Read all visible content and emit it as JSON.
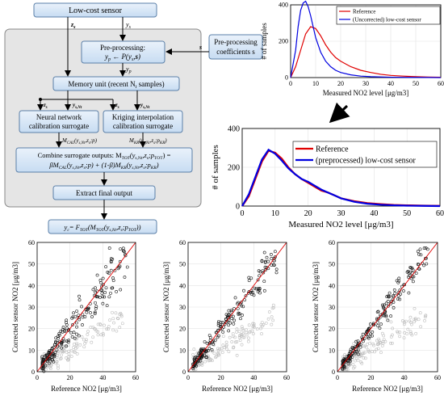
{
  "flowchart": {
    "sensor_box": "Low-cost sensor",
    "pre_box_line1": "Pre-processing:",
    "pre_box_line2": "y",
    "pre_coeff_line1": "Pre-processing",
    "pre_coeff_line2": "coefficients s",
    "memory_box": "Memory unit (recent N",
    "nn_line1": "Neural network",
    "nn_line2": "calibration surrogate",
    "kr_line1": "Kriging interpolation",
    "kr_line2": "calibration surrogate",
    "combine_line1": "Combine surrogate outputs: M",
    "combine_line2": "βM",
    "extract_box": "Extract final output",
    "final_box": "y",
    "lbl_zs": "z",
    "lbl_ys": "y",
    "lbl_s": "s",
    "lbl_yp": "y",
    "lbl_yNt": "y",
    "lbl_MCAL": "M",
    "lbl_MKR": "M"
  },
  "chart_data": [
    {
      "type": "line",
      "title": "",
      "xlabel": "Measured NO2 level [μg/m3]",
      "ylabel": "# of samples",
      "xlim": [
        0,
        60
      ],
      "ylim": [
        0,
        400
      ],
      "xticks": [
        "0",
        "10",
        "20",
        "30",
        "40",
        "50",
        "60"
      ],
      "yticks": [
        "0",
        "200",
        "400"
      ],
      "legend": "top-right",
      "series": [
        {
          "name": "Reference",
          "color": "#e00000",
          "x": [
            0,
            2,
            4,
            6,
            8,
            10,
            12,
            14,
            16,
            18,
            20,
            24,
            28,
            32,
            36,
            40,
            45,
            50,
            55,
            60
          ],
          "y": [
            0,
            60,
            150,
            240,
            280,
            270,
            230,
            180,
            140,
            110,
            90,
            60,
            40,
            28,
            18,
            12,
            8,
            5,
            3,
            2
          ]
        },
        {
          "name": "(Uncorrected) low-cost sensor",
          "color": "#0000e0",
          "x": [
            0,
            2,
            3,
            4,
            5,
            6,
            7,
            8,
            9,
            10,
            12,
            14,
            16,
            18,
            20,
            24,
            28,
            32,
            40,
            50,
            60
          ],
          "y": [
            0,
            150,
            280,
            370,
            410,
            420,
            390,
            340,
            280,
            220,
            140,
            90,
            60,
            40,
            28,
            15,
            8,
            5,
            2,
            1,
            0
          ]
        }
      ]
    },
    {
      "type": "line",
      "title": "",
      "xlabel": "Measured NO2 level [μg/m3]",
      "ylabel": "# of samples",
      "xlim": [
        0,
        60
      ],
      "ylim": [
        0,
        400
      ],
      "xticks": [
        "0",
        "10",
        "20",
        "30",
        "40",
        "50",
        "60"
      ],
      "yticks": [
        "0",
        "200",
        "400"
      ],
      "legend": "top-right",
      "series": [
        {
          "name": "Reference",
          "color": "#e00000",
          "x": [
            0,
            2,
            4,
            6,
            8,
            10,
            12,
            14,
            16,
            18,
            20,
            22,
            24,
            26,
            28,
            30,
            34,
            38,
            42,
            46,
            50,
            55,
            60
          ],
          "y": [
            0,
            50,
            140,
            230,
            285,
            275,
            245,
            200,
            165,
            140,
            120,
            100,
            80,
            70,
            55,
            40,
            25,
            15,
            10,
            6,
            4,
            2,
            1
          ]
        },
        {
          "name": "(preprocessed) low-cost sensor",
          "color": "#0000e0",
          "x": [
            0,
            2,
            4,
            6,
            8,
            10,
            12,
            14,
            16,
            18,
            20,
            22,
            24,
            26,
            28,
            30,
            34,
            38,
            42,
            46,
            50,
            55,
            60
          ],
          "y": [
            0,
            60,
            150,
            240,
            290,
            270,
            235,
            195,
            165,
            140,
            125,
            105,
            85,
            70,
            55,
            40,
            22,
            12,
            7,
            4,
            2,
            1,
            0
          ]
        }
      ]
    },
    {
      "type": "scatter",
      "xlabel": "Reference NO2 [μg/m3]",
      "ylabel": "Corrected sensor NO2 [μg/m3]",
      "xlim": [
        0,
        60
      ],
      "ylim": [
        0,
        60
      ],
      "xticks": [
        "0",
        "20",
        "40",
        "60"
      ],
      "yticks": [
        "0",
        "10",
        "20",
        "30",
        "40",
        "50",
        "60"
      ],
      "panels": [
        "left",
        "middle",
        "right"
      ]
    }
  ]
}
